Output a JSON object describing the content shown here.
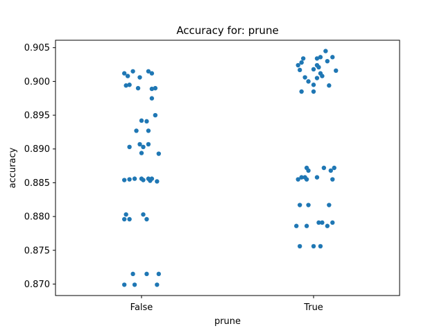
{
  "chart_data": {
    "type": "scatter",
    "subtype": "strip",
    "title": "Accuracy for: prune",
    "xlabel": "prune",
    "ylabel": "accuracy",
    "categories": [
      "False",
      "True"
    ],
    "ylim": [
      0.8683,
      0.9061
    ],
    "yticks": [
      "0.870",
      "0.875",
      "0.880",
      "0.885",
      "0.890",
      "0.895",
      "0.900",
      "0.905"
    ],
    "grid": false,
    "legend": "none",
    "point_color": "#1f77b4",
    "series": [
      {
        "category": "False",
        "points": [
          {
            "x": -0.1,
            "y": 0.9012
          },
          {
            "x": -0.05,
            "y": 0.9015
          },
          {
            "x": -0.01,
            "y": 0.9006
          },
          {
            "x": 0.04,
            "y": 0.9015
          },
          {
            "x": 0.06,
            "y": 0.9012
          },
          {
            "x": -0.08,
            "y": 0.9008
          },
          {
            "x": -0.09,
            "y": 0.8994
          },
          {
            "x": -0.07,
            "y": 0.8995
          },
          {
            "x": -0.02,
            "y": 0.899
          },
          {
            "x": 0.06,
            "y": 0.8989
          },
          {
            "x": 0.08,
            "y": 0.899
          },
          {
            "x": 0.06,
            "y": 0.8975
          },
          {
            "x": 0.08,
            "y": 0.895
          },
          {
            "x": 0.0,
            "y": 0.8942
          },
          {
            "x": 0.03,
            "y": 0.8941
          },
          {
            "x": -0.03,
            "y": 0.8927
          },
          {
            "x": 0.04,
            "y": 0.8927
          },
          {
            "x": -0.07,
            "y": 0.8903
          },
          {
            "x": -0.01,
            "y": 0.8907
          },
          {
            "x": 0.01,
            "y": 0.8903
          },
          {
            "x": 0.04,
            "y": 0.8907
          },
          {
            "x": 0.0,
            "y": 0.8894
          },
          {
            "x": 0.1,
            "y": 0.8893
          },
          {
            "x": -0.1,
            "y": 0.8854
          },
          {
            "x": -0.07,
            "y": 0.8855
          },
          {
            "x": -0.04,
            "y": 0.8856
          },
          {
            "x": 0.0,
            "y": 0.8856
          },
          {
            "x": 0.01,
            "y": 0.8854
          },
          {
            "x": 0.04,
            "y": 0.8856
          },
          {
            "x": 0.05,
            "y": 0.8853
          },
          {
            "x": 0.06,
            "y": 0.8856
          },
          {
            "x": 0.09,
            "y": 0.8852
          },
          {
            "x": -0.09,
            "y": 0.8803
          },
          {
            "x": 0.01,
            "y": 0.8803
          },
          {
            "x": -0.1,
            "y": 0.8796
          },
          {
            "x": -0.07,
            "y": 0.8796
          },
          {
            "x": 0.03,
            "y": 0.8796
          },
          {
            "x": -0.05,
            "y": 0.8715
          },
          {
            "x": 0.03,
            "y": 0.8715
          },
          {
            "x": 0.1,
            "y": 0.8715
          },
          {
            "x": -0.1,
            "y": 0.8699
          },
          {
            "x": -0.04,
            "y": 0.8699
          },
          {
            "x": 0.09,
            "y": 0.8699
          }
        ]
      },
      {
        "category": "True",
        "points": [
          {
            "x": 0.07,
            "y": 0.9045
          },
          {
            "x": 0.04,
            "y": 0.9036
          },
          {
            "x": -0.06,
            "y": 0.9034
          },
          {
            "x": 0.11,
            "y": 0.9036
          },
          {
            "x": 0.02,
            "y": 0.9034
          },
          {
            "x": 0.08,
            "y": 0.903
          },
          {
            "x": -0.09,
            "y": 0.9024
          },
          {
            "x": -0.07,
            "y": 0.9028
          },
          {
            "x": 0.02,
            "y": 0.9024
          },
          {
            "x": 0.03,
            "y": 0.9021
          },
          {
            "x": 0.0,
            "y": 0.9018
          },
          {
            "x": 0.13,
            "y": 0.9016
          },
          {
            "x": -0.08,
            "y": 0.9017
          },
          {
            "x": 0.04,
            "y": 0.9012
          },
          {
            "x": 0.05,
            "y": 0.9008
          },
          {
            "x": -0.05,
            "y": 0.9006
          },
          {
            "x": 0.02,
            "y": 0.9005
          },
          {
            "x": -0.03,
            "y": 0.9
          },
          {
            "x": 0.0,
            "y": 0.8995
          },
          {
            "x": 0.09,
            "y": 0.8994
          },
          {
            "x": -0.07,
            "y": 0.8985
          },
          {
            "x": 0.0,
            "y": 0.8985
          },
          {
            "x": 0.06,
            "y": 0.8872
          },
          {
            "x": 0.12,
            "y": 0.8872
          },
          {
            "x": -0.04,
            "y": 0.8872
          },
          {
            "x": -0.03,
            "y": 0.8868
          },
          {
            "x": 0.1,
            "y": 0.8868
          },
          {
            "x": -0.09,
            "y": 0.8855
          },
          {
            "x": -0.07,
            "y": 0.8858
          },
          {
            "x": -0.05,
            "y": 0.8858
          },
          {
            "x": -0.04,
            "y": 0.8855
          },
          {
            "x": 0.02,
            "y": 0.8858
          },
          {
            "x": 0.11,
            "y": 0.8855
          },
          {
            "x": -0.08,
            "y": 0.8817
          },
          {
            "x": -0.03,
            "y": 0.8817
          },
          {
            "x": 0.09,
            "y": 0.8817
          },
          {
            "x": -0.1,
            "y": 0.8786
          },
          {
            "x": 0.03,
            "y": 0.8791
          },
          {
            "x": 0.05,
            "y": 0.8791
          },
          {
            "x": -0.04,
            "y": 0.8786
          },
          {
            "x": 0.08,
            "y": 0.8786
          },
          {
            "x": 0.11,
            "y": 0.8791
          },
          {
            "x": -0.08,
            "y": 0.8756
          },
          {
            "x": 0.0,
            "y": 0.8756
          },
          {
            "x": 0.04,
            "y": 0.8756
          }
        ]
      }
    ]
  }
}
